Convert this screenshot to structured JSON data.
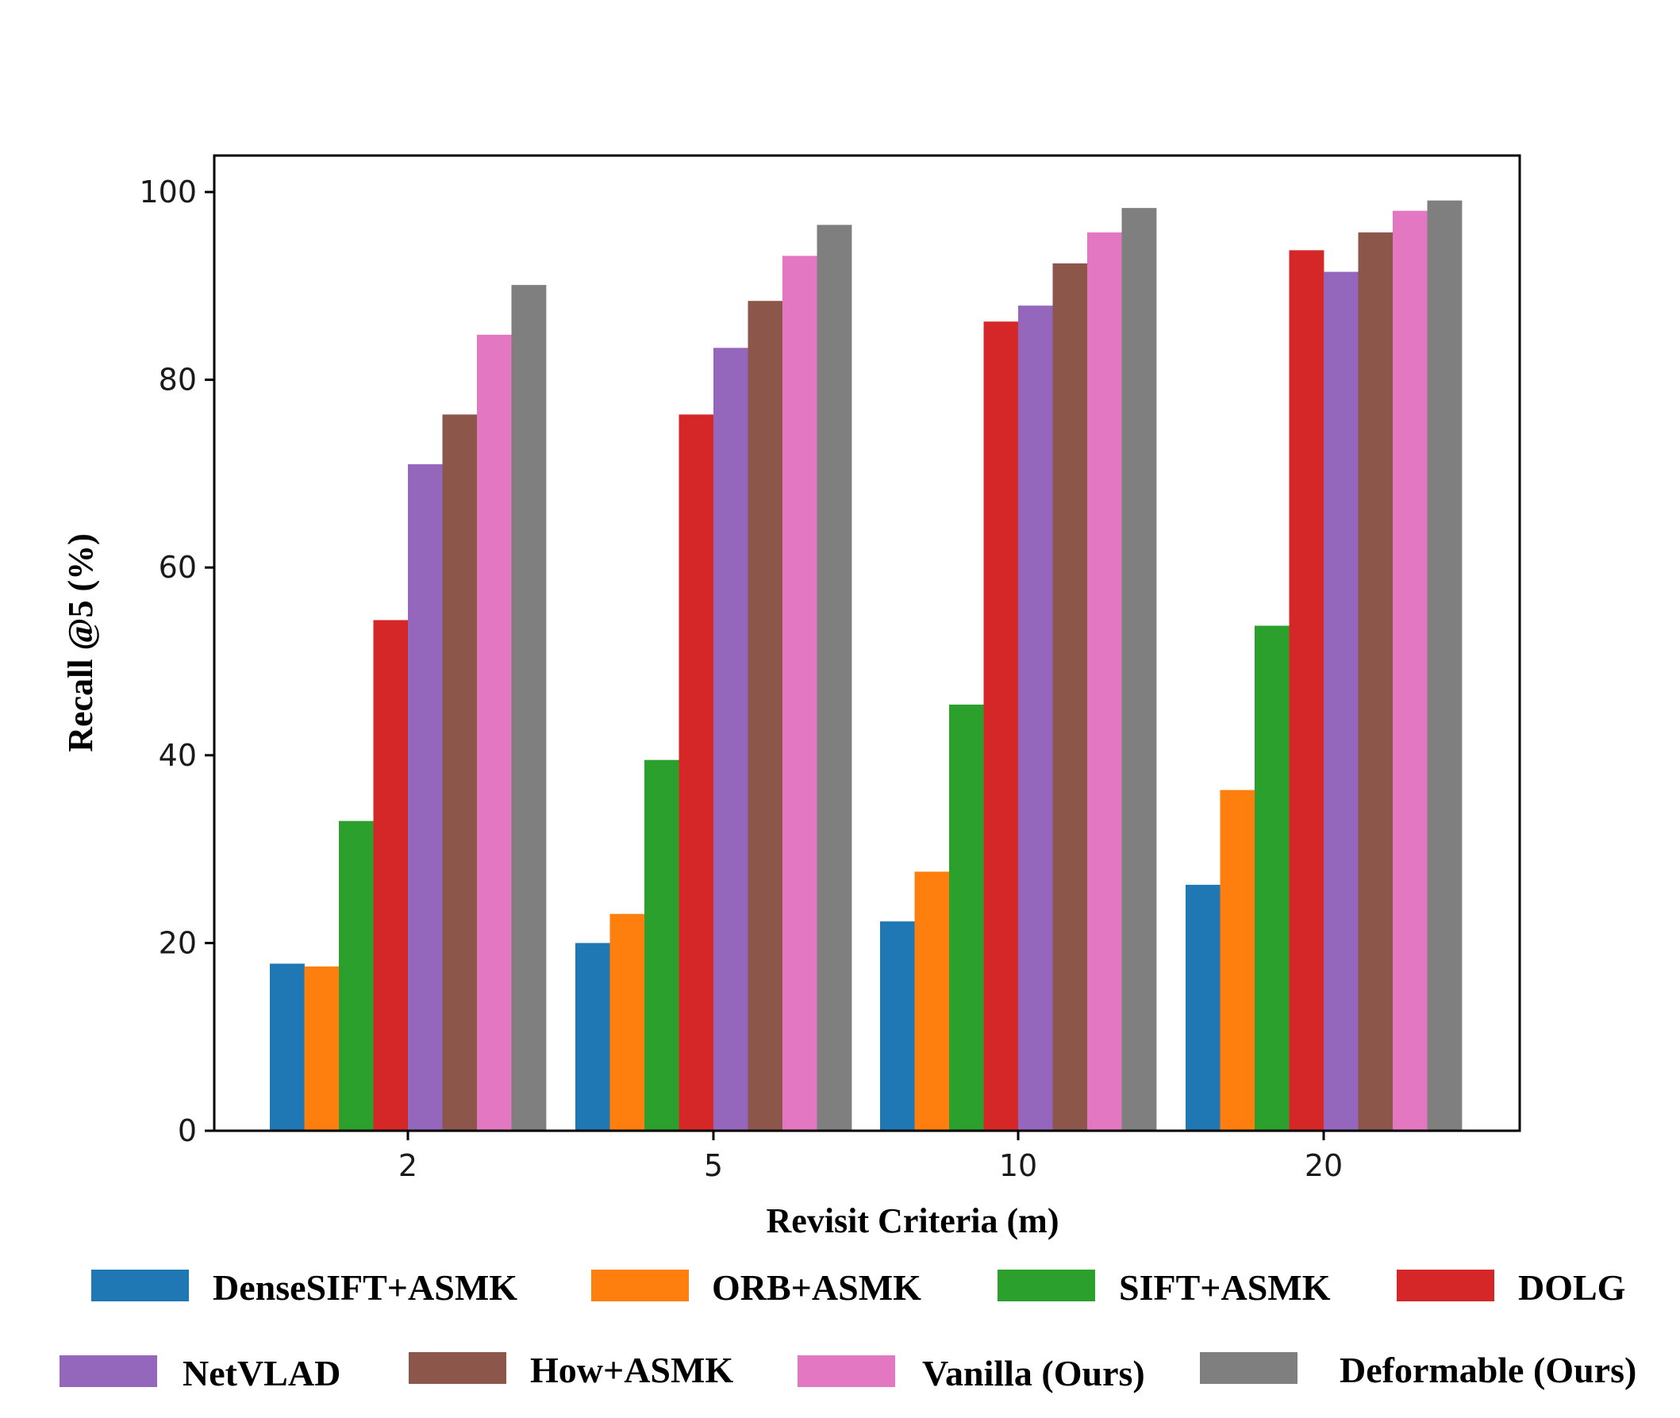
{
  "chart_data": {
    "type": "bar",
    "title": "",
    "xlabel": "Revisit Criteria (m)",
    "ylabel": "Recall @5 (%)",
    "ylim": [
      0,
      100
    ],
    "yticks": [
      0,
      20,
      40,
      60,
      80,
      100
    ],
    "grid": false,
    "legend_position": "bottom",
    "categories": [
      "2",
      "5",
      "10",
      "20"
    ],
    "series": [
      {
        "name": "DenseSIFT+ASMK",
        "color": "#1f77b4",
        "values": [
          17.8,
          20.0,
          22.3,
          26.2
        ]
      },
      {
        "name": "ORB+ASMK",
        "color": "#ff7f0e",
        "values": [
          17.5,
          23.1,
          27.6,
          36.3
        ]
      },
      {
        "name": "SIFT+ASMK",
        "color": "#2ca02c",
        "values": [
          33.0,
          39.5,
          45.4,
          53.8
        ]
      },
      {
        "name": "DOLG",
        "color": "#d62728",
        "values": [
          54.4,
          76.3,
          86.2,
          93.8
        ]
      },
      {
        "name": "NetVLAD",
        "color": "#9467bd",
        "values": [
          71.0,
          83.4,
          87.9,
          91.5
        ]
      },
      {
        "name": "How+ASMK",
        "color": "#8c564b",
        "values": [
          76.3,
          88.4,
          92.4,
          95.7
        ]
      },
      {
        "name": "Vanilla (Ours)",
        "color": "#e377c2",
        "values": [
          84.8,
          93.2,
          95.7,
          98.0
        ]
      },
      {
        "name": "Deformable (Ours)",
        "color": "#7f7f7f",
        "values": [
          90.1,
          96.5,
          98.3,
          99.1
        ]
      }
    ]
  }
}
